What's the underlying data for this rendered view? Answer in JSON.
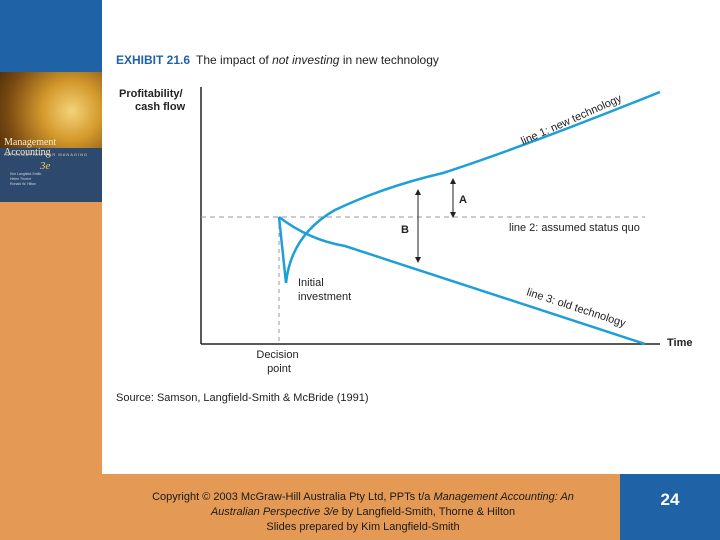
{
  "exhibit": {
    "label": "EXHIBIT 21.6",
    "title_before": "The impact of",
    "title_italic": "not investing",
    "title_after": "in new technology"
  },
  "diagram": {
    "y_axis_label_line1": "Profitability/",
    "y_axis_label_line2": "cash flow",
    "x_axis_label": "Time",
    "decision_label_line1": "Decision",
    "decision_label_line2": "point",
    "initial_investment_line1": "Initial",
    "initial_investment_line2": "investment",
    "line1_label": "line 1: new technology",
    "line2_label": "line 2: assumed status quo",
    "line3_label": "line 3: old technology",
    "gap_a_label": "A",
    "gap_b_label": "B",
    "line_color": "#1e9fd8",
    "axis_color": "#222222",
    "dashed_color": "#999999"
  },
  "source": "Source: Samson, Langfield-Smith & McBride (1991)",
  "book_cover": {
    "title": "Management Accounting",
    "subtitle": "INFORMATION FOR MANAGING",
    "edition": "3e",
    "authors": [
      "Kim Langfield-Smith",
      "Helen Thorne",
      "Ronald W. Hilton"
    ]
  },
  "footer": {
    "line1_before": "Copyright © 2003 McGraw-Hill Australia Pty Ltd, PPTs t/a",
    "line1_italic": "Management Accounting: An",
    "line2_italic": "Australian Perspective 3/e",
    "line2_after": "by Langfield-Smith, Thorne & Hilton",
    "line3": "Slides prepared by Kim Langfield-Smith",
    "slide_number": "24"
  }
}
